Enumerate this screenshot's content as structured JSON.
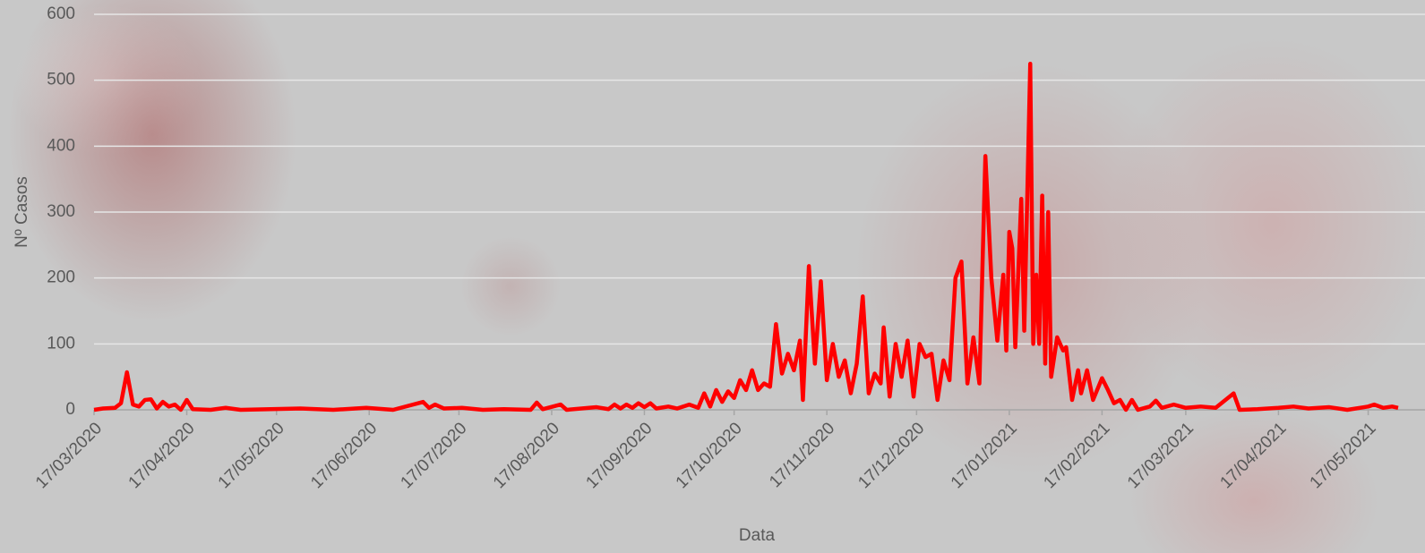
{
  "chart_data": {
    "type": "line",
    "x_label": "Data",
    "y_label": "Nº Casos",
    "color": "#ff0000",
    "grid": true,
    "ylim": [
      0,
      600
    ],
    "yticks": [
      0,
      100,
      200,
      300,
      400,
      500,
      600
    ],
    "xlim": [
      "17/03/2020",
      "27/05/2021"
    ],
    "xticks": [
      "17/03/2020",
      "17/04/2020",
      "17/05/2020",
      "17/06/2020",
      "17/07/2020",
      "17/08/2020",
      "17/09/2020",
      "17/10/2020",
      "17/11/2020",
      "17/12/2020",
      "17/01/2021",
      "17/02/2021",
      "17/03/2021",
      "17/04/2021",
      "17/05/2021"
    ],
    "x": [
      "17/03/2020",
      "20/03/2020",
      "24/03/2020",
      "26/03/2020",
      "28/03/2020",
      "30/03/2020",
      "01/04/2020",
      "03/04/2020",
      "05/04/2020",
      "07/04/2020",
      "09/04/2020",
      "11/04/2020",
      "13/04/2020",
      "15/04/2020",
      "17/04/2020",
      "19/04/2020",
      "25/04/2020",
      "30/04/2020",
      "05/05/2020",
      "15/05/2020",
      "25/05/2020",
      "05/06/2020",
      "16/06/2020",
      "25/06/2020",
      "05/07/2020",
      "07/07/2020",
      "09/07/2020",
      "12/07/2020",
      "18/07/2020",
      "25/07/2020",
      "01/08/2020",
      "10/08/2020",
      "12/08/2020",
      "14/08/2020",
      "20/08/2020",
      "22/08/2020",
      "01/09/2020",
      "05/09/2020",
      "07/09/2020",
      "09/09/2020",
      "11/09/2020",
      "13/09/2020",
      "15/09/2020",
      "17/09/2020",
      "19/09/2020",
      "21/09/2020",
      "25/09/2020",
      "28/09/2020",
      "02/10/2020",
      "05/10/2020",
      "07/10/2020",
      "09/10/2020",
      "11/10/2020",
      "13/10/2020",
      "15/10/2020",
      "17/10/2020",
      "19/10/2020",
      "21/10/2020",
      "23/10/2020",
      "25/10/2020",
      "27/10/2020",
      "29/10/2020",
      "31/10/2020",
      "02/11/2020",
      "04/11/2020",
      "06/11/2020",
      "08/11/2020",
      "09/11/2020",
      "11/11/2020",
      "13/11/2020",
      "15/11/2020",
      "17/11/2020",
      "19/11/2020",
      "21/11/2020",
      "23/11/2020",
      "25/11/2020",
      "27/11/2020",
      "29/11/2020",
      "01/12/2020",
      "03/12/2020",
      "05/12/2020",
      "06/12/2020",
      "08/12/2020",
      "10/12/2020",
      "12/12/2020",
      "14/12/2020",
      "16/12/2020",
      "18/12/2020",
      "20/12/2020",
      "22/12/2020",
      "24/12/2020",
      "26/12/2020",
      "28/12/2020",
      "30/12/2020",
      "01/01/2021",
      "03/01/2021",
      "05/01/2021",
      "07/01/2021",
      "09/01/2021",
      "11/01/2021",
      "13/01/2021",
      "15/01/2021",
      "16/01/2021",
      "17/01/2021",
      "18/01/2021",
      "19/01/2021",
      "21/01/2021",
      "22/01/2021",
      "24/01/2021",
      "25/01/2021",
      "26/01/2021",
      "27/01/2021",
      "28/01/2021",
      "29/01/2021",
      "30/01/2021",
      "31/01/2021",
      "02/02/2021",
      "04/02/2021",
      "05/02/2021",
      "07/02/2021",
      "09/02/2021",
      "10/02/2021",
      "12/02/2021",
      "14/02/2021",
      "17/02/2021",
      "19/02/2021",
      "21/02/2021",
      "23/02/2021",
      "25/02/2021",
      "27/02/2021",
      "01/03/2021",
      "05/03/2021",
      "07/03/2021",
      "09/03/2021",
      "13/03/2021",
      "17/03/2021",
      "22/03/2021",
      "27/03/2021",
      "02/04/2021",
      "04/04/2021",
      "10/04/2021",
      "17/04/2021",
      "22/04/2021",
      "27/04/2021",
      "04/05/2021",
      "10/05/2021",
      "17/05/2021",
      "19/05/2021",
      "22/05/2021",
      "25/05/2021",
      "27/05/2021"
    ],
    "values": [
      0,
      2,
      3,
      10,
      57,
      8,
      5,
      15,
      16,
      2,
      12,
      5,
      8,
      0,
      15,
      1,
      0,
      3,
      0,
      1,
      2,
      0,
      3,
      0,
      12,
      3,
      8,
      2,
      3,
      0,
      1,
      0,
      11,
      1,
      8,
      0,
      4,
      1,
      8,
      2,
      8,
      3,
      10,
      4,
      10,
      2,
      5,
      2,
      8,
      3,
      25,
      5,
      30,
      12,
      28,
      18,
      45,
      30,
      60,
      30,
      40,
      35,
      130,
      55,
      85,
      60,
      105,
      15,
      218,
      70,
      195,
      45,
      100,
      50,
      75,
      25,
      70,
      172,
      25,
      55,
      40,
      125,
      20,
      100,
      50,
      105,
      20,
      100,
      80,
      85,
      15,
      75,
      45,
      200,
      225,
      40,
      110,
      40,
      385,
      200,
      105,
      205,
      90,
      270,
      245,
      95,
      320,
      120,
      525,
      100,
      205,
      100,
      325,
      70,
      300,
      50,
      110,
      90,
      95,
      15,
      60,
      25,
      60,
      15,
      48,
      30,
      10,
      15,
      0,
      15,
      0,
      5,
      14,
      3,
      8,
      3,
      5,
      3,
      25,
      0,
      1,
      3,
      5,
      2,
      4,
      0,
      5,
      8,
      3,
      5,
      3
    ]
  }
}
